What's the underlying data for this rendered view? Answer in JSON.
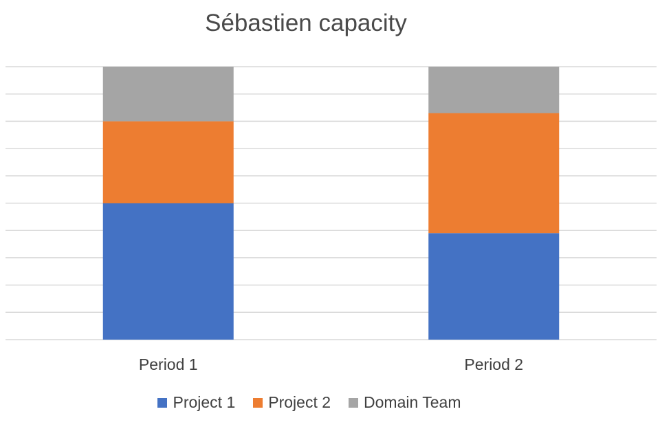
{
  "chart_data": {
    "type": "bar",
    "stacked": true,
    "title": "Sébastien capacity",
    "xlabel": "",
    "ylabel": "",
    "ylim": [
      0,
      100
    ],
    "grid": true,
    "legend": "bottom",
    "categories": [
      "Period 1",
      "Period 2"
    ],
    "series": [
      {
        "name": "Project 1",
        "color": "#4472C4",
        "values": [
          50,
          39
        ]
      },
      {
        "name": "Project 2",
        "color": "#ED7D31",
        "values": [
          30,
          44
        ]
      },
      {
        "name": "Domain Team",
        "color": "#A5A5A5",
        "values": [
          20,
          17
        ]
      }
    ]
  }
}
